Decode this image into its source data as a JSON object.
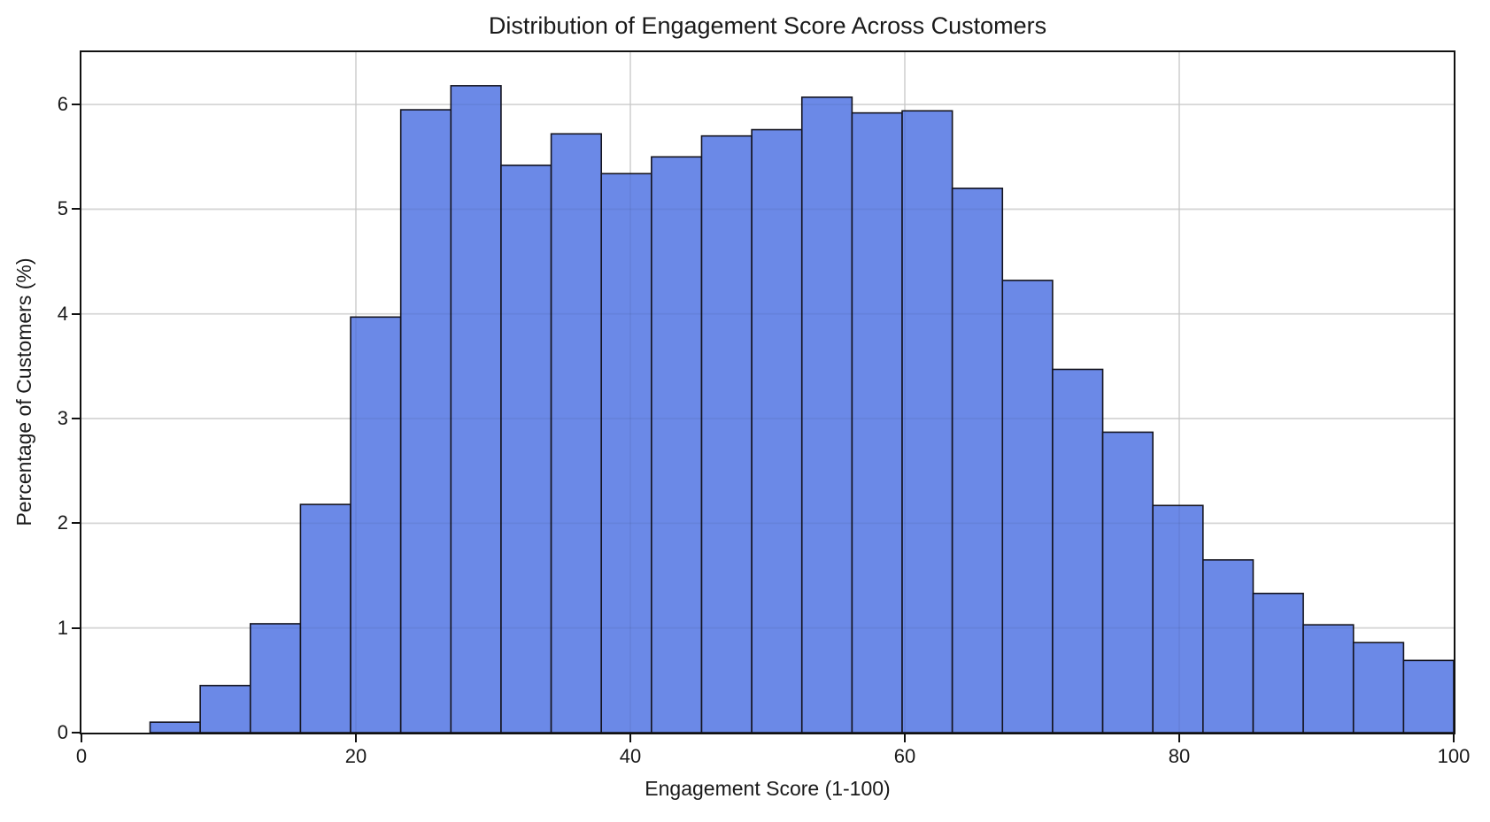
{
  "chart_data": {
    "type": "bar",
    "subtype": "histogram",
    "title": "Distribution of Engagement Score Across Customers",
    "xlabel": "Engagement Score (1-100)",
    "ylabel": "Percentage of Customers (%)",
    "bin_start": 5,
    "bin_end": 100,
    "bin_count": 26,
    "bin_width": 3.6538,
    "values": [
      0.1,
      0.45,
      1.04,
      2.18,
      3.97,
      5.95,
      6.18,
      5.42,
      5.72,
      5.34,
      5.5,
      5.7,
      5.76,
      6.07,
      5.92,
      5.94,
      5.2,
      4.32,
      3.47,
      2.87,
      2.17,
      1.65,
      1.33,
      1.03,
      0.86,
      0.69
    ],
    "xlim": [
      0,
      100
    ],
    "ylim": [
      0,
      6.5
    ],
    "xticks": [
      0,
      20,
      40,
      60,
      80,
      100
    ],
    "yticks": [
      0,
      1,
      2,
      3,
      4,
      5,
      6
    ],
    "grid": true,
    "legend": false,
    "colors": {
      "bar_fill": "#6B89E7",
      "bar_edge": "#14141F",
      "grid": "#E2E2E2",
      "grid_overlay_on_bars": "rgba(0,0,0,0.05)",
      "spine": "#111111",
      "text": "#1A1A1A",
      "background": "#FFFFFF"
    }
  }
}
